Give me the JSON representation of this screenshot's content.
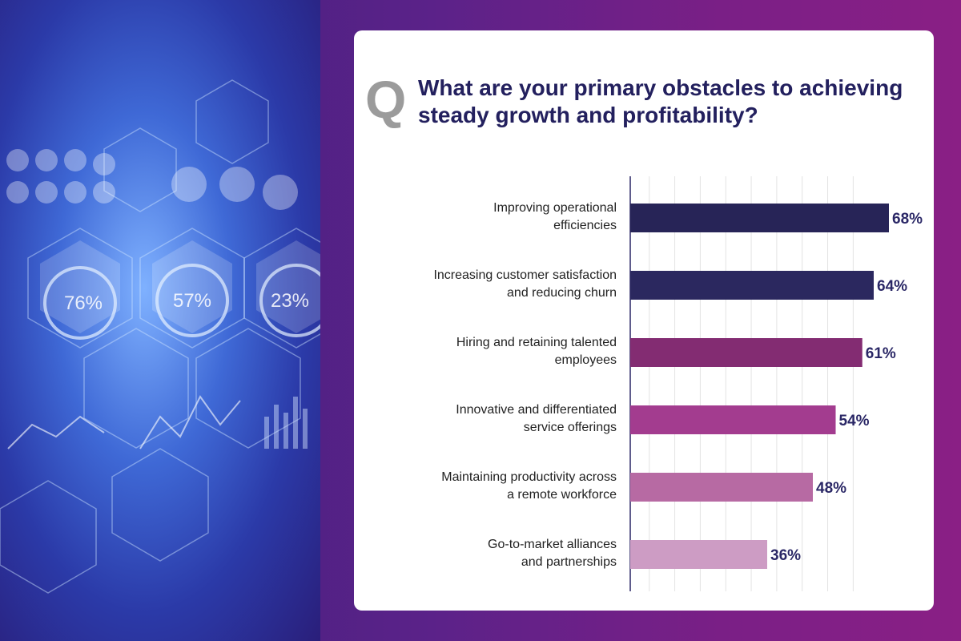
{
  "question": {
    "letter": "Q",
    "text": "What are your primary obstacles to achieving steady growth and profitability?"
  },
  "hero_image": {
    "hex_readouts": [
      "76%",
      "57%",
      "23%"
    ]
  },
  "chart_data": {
    "type": "bar",
    "orientation": "horizontal",
    "title": "What are your primary obstacles to achieving steady growth and profitability?",
    "categories": [
      [
        "Improving operational",
        "efficiencies"
      ],
      [
        "Increasing customer satisfaction",
        "and reducing churn"
      ],
      [
        "Hiring  and retaining talented",
        "employees"
      ],
      [
        "Innovative and differentiated",
        "service offerings"
      ],
      [
        "Maintaining productivity across",
        "a remote workforce"
      ],
      [
        "Go-to-market alliances",
        "and partnerships"
      ]
    ],
    "values": [
      68,
      64,
      61,
      54,
      48,
      36
    ],
    "value_labels": [
      "68%",
      "64%",
      "61%",
      "54%",
      "48%",
      "36%"
    ],
    "unit": "%",
    "xlim": [
      0,
      100
    ],
    "grid": true,
    "bar_colors": [
      "#272457",
      "#2b285f",
      "#832c72",
      "#a33c8f",
      "#b76aa3",
      "#cd9cc4"
    ]
  }
}
